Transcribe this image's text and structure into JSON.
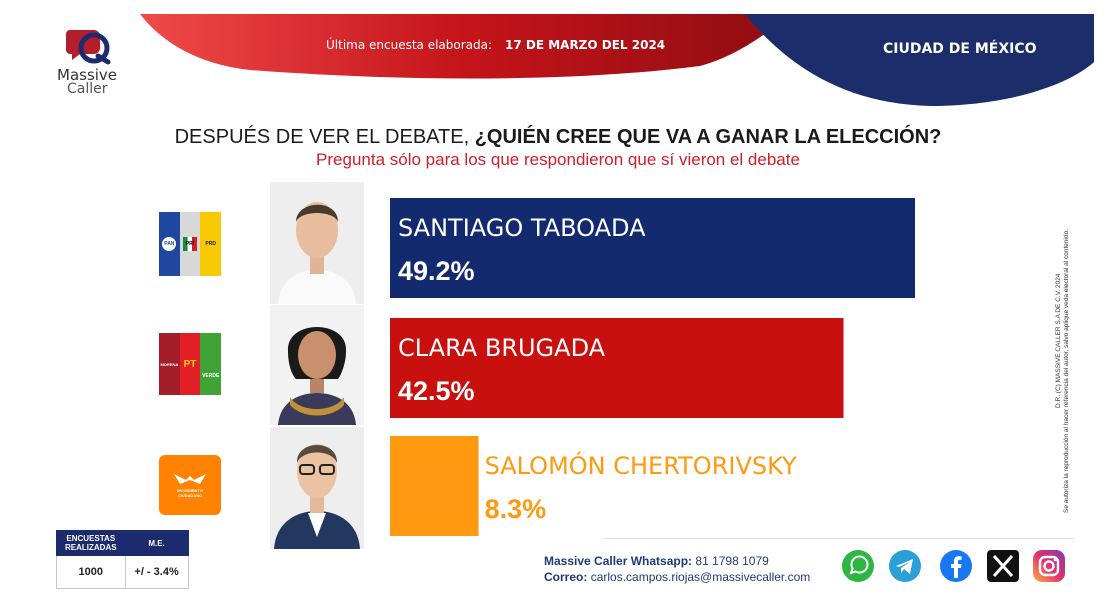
{
  "header": {
    "brand_line1": "Massive",
    "brand_line2": "Caller",
    "survey_label": "Última encuesta elaborada:",
    "survey_date": "17 DE MARZO DEL 2024",
    "region": "CIUDAD DE MÉXICO"
  },
  "question": {
    "title_part1": "DESPUÉS DE VER EL DEBATE, ",
    "title_part2": "¿QUIÉN CREE QUE VA A GANAR LA ELECCIÓN?",
    "subtitle": "Pregunta sólo para los que respondieron que sí vieron el debate"
  },
  "chart_data": {
    "type": "bar",
    "orientation": "horizontal",
    "categories": [
      "SANTIAGO TABOADA",
      "CLARA BRUGADA",
      "SALOMÓN CHERTORIVSKY"
    ],
    "values": [
      49.2,
      42.5,
      8.3
    ],
    "value_labels": [
      "49.2%",
      "42.5%",
      "8.3%"
    ],
    "colors": [
      "#142a6e",
      "#c8100f",
      "#ff9a10"
    ],
    "ylim": [
      0,
      49.2
    ]
  },
  "parties": [
    {
      "logo_text": [
        "PAN",
        "PRI",
        "PRD"
      ],
      "logo_colors": [
        "#1f47a0",
        "#d8d8d8",
        "#f7c900"
      ]
    },
    {
      "logo_text": [
        "MORENA",
        "PT",
        "VERDE"
      ],
      "logo_colors": [
        "#a31d2b",
        "#e21f26",
        "#3fa435"
      ]
    },
    {
      "logo_text": [
        "MOVIMIENTO CIUDADANO"
      ],
      "logo_colors": [
        "#ff8300"
      ]
    }
  ],
  "side_note": {
    "line1": "D.R. (C) MASSIVE CALLER S.A DE C.V. 2024",
    "line2": "Se autoriza la reproducción al hacer referencia del autor, salvo aplique veda electoral al contenido."
  },
  "stats": {
    "col1_header_a": "ENCUESTAS",
    "col1_header_b": "REALIZADAS",
    "col2_header": "M.E.",
    "col1_value": "1000",
    "col2_value": "+/ - 3.4%"
  },
  "contact": {
    "whatsapp_label": "Massive Caller Whatsapp:",
    "whatsapp_number": "81 1798 1079",
    "email_label": "Correo:",
    "email": "carlos.campos.riojas@massivecaller.com"
  },
  "social_icons": [
    "whatsapp-icon",
    "telegram-icon",
    "facebook-icon",
    "x-icon",
    "instagram-icon"
  ],
  "social_colors": [
    "#2bb742",
    "#2a9fd8",
    "#1877f2",
    "#111111",
    "#d6296f"
  ]
}
